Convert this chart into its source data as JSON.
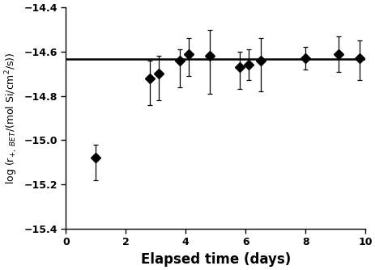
{
  "x": [
    1,
    2.8,
    3.1,
    3.8,
    4.1,
    4.8,
    5.8,
    6.1,
    6.5,
    8.0,
    9.1,
    9.8
  ],
  "y": [
    -15.08,
    -14.72,
    -14.7,
    -14.64,
    -14.61,
    -14.62,
    -14.67,
    -14.66,
    -14.64,
    -14.63,
    -14.61,
    -14.63
  ],
  "yerr_upper": [
    0.06,
    0.08,
    0.08,
    0.05,
    0.07,
    0.12,
    0.07,
    0.07,
    0.1,
    0.05,
    0.08,
    0.08
  ],
  "yerr_lower": [
    0.1,
    0.12,
    0.12,
    0.12,
    0.1,
    0.17,
    0.1,
    0.07,
    0.14,
    0.05,
    0.08,
    0.1
  ],
  "hline_y": -14.635,
  "xlim": [
    0,
    10
  ],
  "ylim": [
    -15.4,
    -14.4
  ],
  "yticks": [
    -15.4,
    -15.2,
    -15.0,
    -14.8,
    -14.6,
    -14.4
  ],
  "xticks": [
    0,
    2,
    4,
    6,
    8,
    10
  ],
  "xlabel": "Elapsed time (days)",
  "marker": "D",
  "marker_color": "black",
  "marker_size": 6,
  "line_color": "black",
  "line_width": 1.8,
  "elinewidth": 0.9,
  "capsize": 2.5,
  "ecolor": "black",
  "background_color": "white",
  "spine_linewidth": 1.0,
  "tick_labelsize": 9,
  "xlabel_fontsize": 12,
  "ylabel_fontsize": 9
}
